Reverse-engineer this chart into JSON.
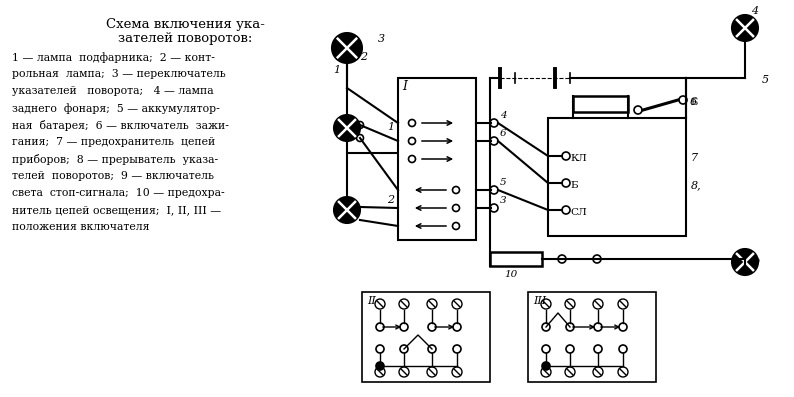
{
  "bg_color": "#ffffff",
  "line_color": "#000000",
  "title": "Схема включения ука-\nзателей поворотов:",
  "legend_lines": [
    "1 — лампа  подфарника;  2 — конт-",
    "рольная  лампа;  3 — переключатель",
    "указателей   поворота;   4 — лампа",
    "заднего  фонаря;  5 — аккумулятор-",
    "ная  батарея;  6 — включатель  зажи-",
    "гания;  7 — предохранитель  цепей",
    "приборов;  8 — прерыватель  указа-",
    "телей  поворотов;  9 — включатель",
    "света  стоп-сигнала;  10 — предохра-",
    "нитель цепей освещения;  I, II, III —",
    "положения включателя"
  ],
  "fig_width": 7.94,
  "fig_height": 3.97,
  "dpi": 100
}
